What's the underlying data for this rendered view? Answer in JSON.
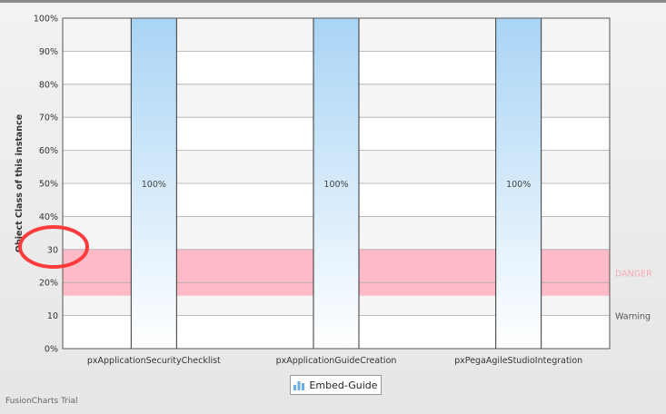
{
  "chart_data": {
    "type": "bar",
    "title": "",
    "xlabel": "",
    "ylabel": "Object Class of this instance",
    "categories": [
      "pxApplicationSecurityChecklist",
      "pxApplicationGuideCreation",
      "pxPegaAgileStudioIntegration"
    ],
    "values": [
      100,
      100,
      100
    ],
    "value_labels": [
      "100%",
      "100%",
      "100%"
    ],
    "ylim": [
      0,
      100
    ],
    "yticks": [
      {
        "value": 0,
        "label": "0%"
      },
      {
        "value": 10,
        "label": "10"
      },
      {
        "value": 20,
        "label": "20%"
      },
      {
        "value": 30,
        "label": "30"
      },
      {
        "value": 40,
        "label": "40%"
      },
      {
        "value": 50,
        "label": "50%"
      },
      {
        "value": 60,
        "label": "60%"
      },
      {
        "value": 70,
        "label": "70%"
      },
      {
        "value": 80,
        "label": "80%"
      },
      {
        "value": 90,
        "label": "90%"
      },
      {
        "value": 100,
        "label": "100%"
      }
    ],
    "grid": true,
    "trend_zones": [
      {
        "label": "DANGER",
        "from": 16,
        "to": 30,
        "color": "#ffbac8",
        "label_color": "#f4a9b6"
      }
    ],
    "trend_lines": [
      {
        "label": "Warning",
        "value": 10,
        "label_color": "#555555"
      }
    ],
    "legend": {
      "position": "bottom",
      "entries": [
        "Embed-Guide"
      ]
    },
    "colors": {
      "bar_top": "#a9d4f5",
      "bar_bottom": "#ffffff",
      "bar_border": "#333333",
      "band": "#f5f5f5",
      "grid": "#aaaaaa",
      "highlight": "#ff3b3b"
    }
  },
  "footer": {
    "trial_text": "FusionCharts Trial"
  }
}
